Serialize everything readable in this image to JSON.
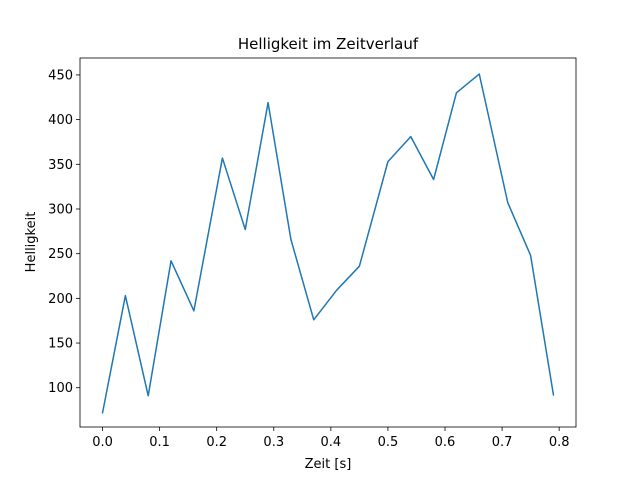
{
  "chart_data": {
    "type": "line",
    "title": "Helligkeit im Zeitverlauf",
    "xlabel": "Zeit [s]",
    "ylabel": "Helligkeit",
    "xlim": [
      -0.0395,
      0.8295
    ],
    "ylim": [
      56.05,
      468.95
    ],
    "xticks": [
      0.0,
      0.1,
      0.2,
      0.3,
      0.4,
      0.5,
      0.6,
      0.7,
      0.8
    ],
    "xtick_labels": [
      "0.0",
      "0.1",
      "0.2",
      "0.3",
      "0.4",
      "0.5",
      "0.6",
      "0.7",
      "0.8"
    ],
    "yticks": [
      100,
      150,
      200,
      250,
      300,
      350,
      400,
      450
    ],
    "ytick_labels": [
      "100",
      "150",
      "200",
      "250",
      "300",
      "350",
      "400",
      "450"
    ],
    "grid": false,
    "series": [
      {
        "color": "#1f77b4",
        "x": [
          0.0,
          0.04,
          0.08,
          0.12,
          0.16,
          0.21,
          0.25,
          0.29,
          0.33,
          0.37,
          0.41,
          0.45,
          0.5,
          0.54,
          0.58,
          0.62,
          0.66,
          0.71,
          0.75,
          0.79
        ],
        "y": [
          72,
          203,
          91,
          242,
          186,
          357,
          277,
          419,
          266,
          176,
          209,
          236,
          353,
          381,
          333,
          430,
          451,
          307,
          248,
          92
        ]
      }
    ]
  }
}
